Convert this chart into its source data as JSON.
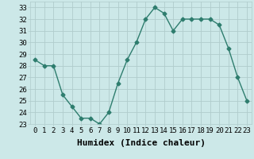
{
  "x": [
    0,
    1,
    2,
    3,
    4,
    5,
    6,
    7,
    8,
    9,
    10,
    11,
    12,
    13,
    14,
    15,
    16,
    17,
    18,
    19,
    20,
    21,
    22,
    23
  ],
  "y": [
    28.5,
    28.0,
    28.0,
    25.5,
    24.5,
    23.5,
    23.5,
    23.0,
    24.0,
    26.5,
    28.5,
    30.0,
    32.0,
    33.0,
    32.5,
    31.0,
    32.0,
    32.0,
    32.0,
    32.0,
    31.5,
    29.5,
    27.0,
    25.0
  ],
  "line_color": "#2e7d6e",
  "bg_color": "#cce8e8",
  "grid_color": "#b0cccc",
  "xlabel": "Humidex (Indice chaleur)",
  "xlim": [
    -0.5,
    23.5
  ],
  "ylim": [
    23,
    33.5
  ],
  "yticks": [
    23,
    24,
    25,
    26,
    27,
    28,
    29,
    30,
    31,
    32,
    33
  ],
  "xticks": [
    0,
    1,
    2,
    3,
    4,
    5,
    6,
    7,
    8,
    9,
    10,
    11,
    12,
    13,
    14,
    15,
    16,
    17,
    18,
    19,
    20,
    21,
    22,
    23
  ],
  "marker": "D",
  "marker_size": 2.5,
  "line_width": 1.0,
  "xlabel_fontsize": 8,
  "tick_fontsize": 6.5
}
